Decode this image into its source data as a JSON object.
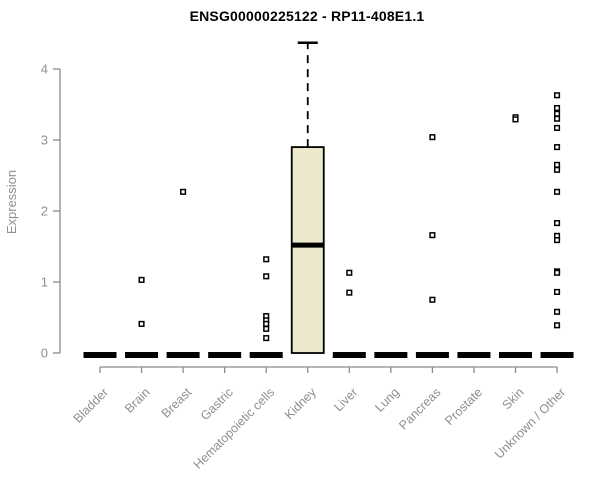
{
  "chart_data": {
    "type": "boxplot",
    "title": "ENSG00000225122 - RP11-408E1.1",
    "xlabel": "",
    "ylabel": "Expression",
    "ylim": [
      0,
      4.4
    ],
    "yticks": [
      0,
      1,
      2,
      3,
      4
    ],
    "grid": false,
    "legend": "none",
    "categories": [
      "Bladder",
      "Brain",
      "Breast",
      "Gastric",
      "Hematopoietic cells",
      "Kidney",
      "Liver",
      "Lung",
      "Pancreas",
      "Prostate",
      "Skin",
      "Unknown / Other"
    ],
    "boxes": [
      {
        "category": "Bladder",
        "min": 0,
        "q1": 0,
        "median": 0,
        "q3": 0,
        "max": 0,
        "outliers": []
      },
      {
        "category": "Brain",
        "min": 0,
        "q1": 0,
        "median": 0,
        "q3": 0,
        "max": 0,
        "outliers": [
          1.03,
          0.41
        ]
      },
      {
        "category": "Breast",
        "min": 0,
        "q1": 0,
        "median": 0,
        "q3": 0,
        "max": 0,
        "outliers": [
          2.27
        ]
      },
      {
        "category": "Gastric",
        "min": 0,
        "q1": 0,
        "median": 0,
        "q3": 0,
        "max": 0,
        "outliers": []
      },
      {
        "category": "Hematopoietic cells",
        "min": 0,
        "q1": 0,
        "median": 0,
        "q3": 0,
        "max": 0,
        "outliers": [
          1.32,
          1.08,
          0.52,
          0.46,
          0.41,
          0.34,
          0.21
        ]
      },
      {
        "category": "Kidney",
        "min": 0,
        "q1": 0,
        "median": 1.52,
        "q3": 2.9,
        "max": 4.37,
        "outliers": []
      },
      {
        "category": "Liver",
        "min": 0,
        "q1": 0,
        "median": 0,
        "q3": 0,
        "max": 0,
        "outliers": [
          1.13,
          0.85
        ]
      },
      {
        "category": "Lung",
        "min": 0,
        "q1": 0,
        "median": 0,
        "q3": 0,
        "max": 0,
        "outliers": []
      },
      {
        "category": "Pancreas",
        "min": 0,
        "q1": 0,
        "median": 0,
        "q3": 0,
        "max": 0,
        "outliers": [
          3.04,
          1.66,
          0.75
        ]
      },
      {
        "category": "Prostate",
        "min": 0,
        "q1": 0,
        "median": 0,
        "q3": 0,
        "max": 0,
        "outliers": []
      },
      {
        "category": "Skin",
        "min": 0,
        "q1": 0,
        "median": 0,
        "q3": 0,
        "max": 0,
        "outliers": [
          3.32,
          3.29
        ]
      },
      {
        "category": "Unknown / Other",
        "min": 0,
        "q1": 0,
        "median": 0,
        "q3": 0,
        "max": 0,
        "outliers": [
          3.63,
          3.45,
          3.37,
          3.3,
          3.17,
          2.9,
          2.65,
          2.58,
          2.27,
          1.83,
          1.65,
          1.59,
          1.15,
          1.13,
          0.86,
          0.58,
          0.39
        ]
      }
    ],
    "colors": {
      "box_fill": "#ECE8CC",
      "box_border": "#000000",
      "median": "#000000",
      "whisker": "#000000",
      "outlier": "#000000",
      "axis": "#8A8A8A",
      "tick_label": "#8F8F8F",
      "title": "#000000",
      "background": "#FFFFFF"
    }
  }
}
